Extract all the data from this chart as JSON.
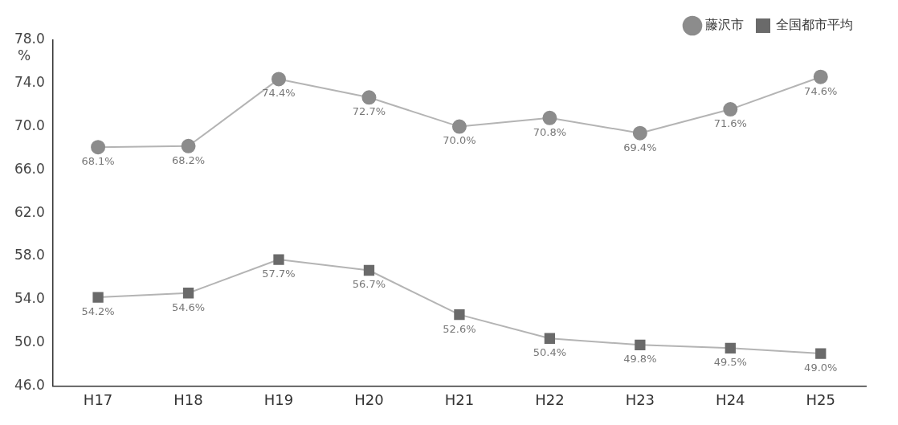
{
  "chart_data": {
    "type": "line",
    "ylabel": "%",
    "categories": [
      "H17",
      "H18",
      "H19",
      "H20",
      "H21",
      "H22",
      "H23",
      "H24",
      "H25"
    ],
    "series": [
      {
        "name": "藤沢市",
        "color": "#8c8c8c",
        "marker": "circle",
        "values": [
          68.1,
          68.2,
          74.4,
          72.7,
          70.0,
          70.8,
          69.4,
          71.6,
          74.6
        ],
        "value_labels": [
          "68.1%",
          "68.2%",
          "74.4%",
          "72.7%",
          "70.0%",
          "70.8%",
          "69.4%",
          "71.6%",
          "74.6%"
        ]
      },
      {
        "name": "全国都市平均",
        "color": "#6a6a6a",
        "marker": "square",
        "values": [
          54.2,
          54.6,
          57.7,
          56.7,
          52.6,
          50.4,
          49.8,
          49.5,
          49.0
        ],
        "value_labels": [
          "54.2%",
          "54.6%",
          "57.7%",
          "56.7%",
          "52.6%",
          "50.4%",
          "49.8%",
          "49.5%",
          "49.0%"
        ]
      }
    ],
    "ylim": [
      46,
      78
    ],
    "yticks": [
      {
        "value": 46,
        "label": "46.0"
      },
      {
        "value": 50,
        "label": "50.0"
      },
      {
        "value": 54,
        "label": "54.0"
      },
      {
        "value": 58,
        "label": "58.0"
      },
      {
        "value": 62,
        "label": "62.0"
      },
      {
        "value": 66,
        "label": "66.0"
      },
      {
        "value": 70,
        "label": "70.0"
      },
      {
        "value": 74,
        "label": "74.0"
      },
      {
        "value": 78,
        "label": "78.0"
      }
    ],
    "grid": false,
    "legend": "top right"
  }
}
